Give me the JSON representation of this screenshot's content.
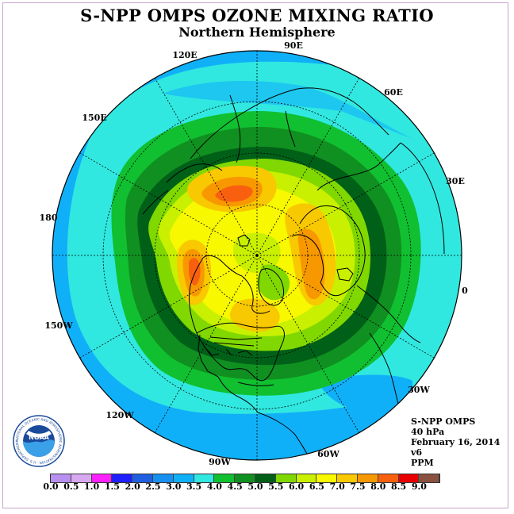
{
  "title": "S-NPP OMPS OZONE MIXING RATIO",
  "subtitle": "Northern Hemisphere",
  "info": {
    "instrument": "S-NPP OMPS",
    "level": "40 hPa",
    "date": "February 16, 2014",
    "version": "v6",
    "unit": "PPM"
  },
  "longitude_labels": [
    "90E",
    "60E",
    "30E",
    "0",
    "30W",
    "60W",
    "90W",
    "120W",
    "150W",
    "180",
    "150E",
    "120E"
  ],
  "logo": {
    "text": "NOAA",
    "ring_text": "NATIONAL OCEANIC AND ATMOSPHERIC ADMINISTRATION · U.S. DEPARTMENT OF COMMERCE"
  },
  "colorbar": {
    "ticks": [
      "0.0",
      "0.5",
      "1.0",
      "1.5",
      "2.0",
      "2.5",
      "3.0",
      "3.5",
      "4.0",
      "4.5",
      "5.0",
      "5.5",
      "6.0",
      "6.5",
      "7.0",
      "7.5",
      "8.0",
      "8.5",
      "9.0"
    ],
    "colors": [
      "#b890f0",
      "#d8a8f0",
      "#ff20ff",
      "#2020ff",
      "#2060e0",
      "#1890f0",
      "#10b0f8",
      "#30e8e0",
      "#10c030",
      "#109020",
      "#006018",
      "#80d800",
      "#c8f000",
      "#f8f800",
      "#f8c800",
      "#f89800",
      "#f86010",
      "#e80000",
      "#8a5040"
    ]
  }
}
